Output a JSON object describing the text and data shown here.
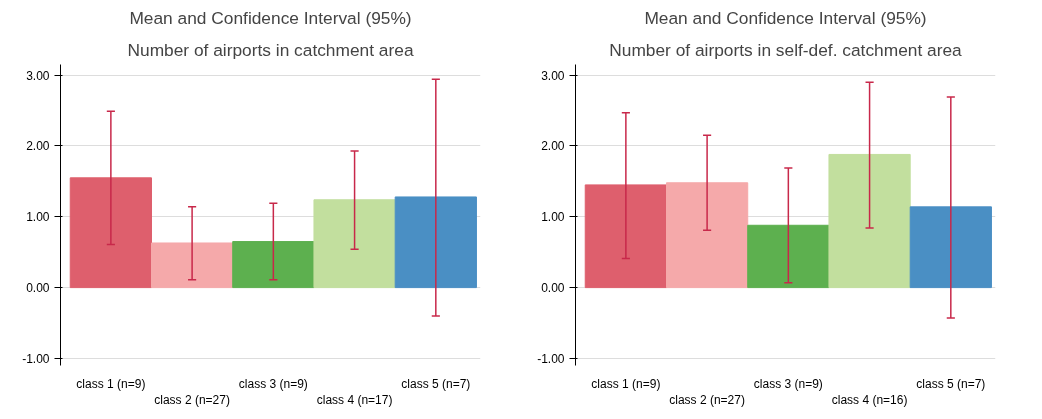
{
  "chart_data": [
    {
      "type": "bar",
      "title": "Mean and Confidence Interval (95%)",
      "subtitle": "Number of airports in catchment area",
      "categories": [
        "class 1 (n=9)",
        "class 2 (n=27)",
        "class 3 (n=9)",
        "class 4 (n=17)",
        "class 5 (n=7)"
      ],
      "values": [
        1.55,
        0.63,
        0.65,
        1.24,
        1.28
      ],
      "colors": [
        "#de5f6d",
        "#f5a9aa",
        "#5db04f",
        "#c2df9e",
        "#4a8fc4"
      ],
      "errors": [
        [
          0.61,
          2.49
        ],
        [
          0.11,
          1.14
        ],
        [
          0.11,
          1.19
        ],
        [
          0.54,
          1.93
        ],
        [
          -0.4,
          2.94
        ]
      ],
      "ylim": [
        -1.1,
        3.15
      ],
      "yticks": [
        {
          "value": -1,
          "label": "-1.00"
        },
        {
          "value": 0,
          "label": "0.00"
        },
        {
          "value": 1,
          "label": "1.00"
        },
        {
          "value": 2,
          "label": "2.00"
        },
        {
          "value": 3,
          "label": "3.00"
        }
      ],
      "grid": "y"
    },
    {
      "type": "bar",
      "title": "Mean and Confidence Interval (95%)",
      "subtitle": "Number of airports in self-def. catchment area",
      "categories": [
        "class 1 (n=9)",
        "class 2 (n=27)",
        "class 3 (n=9)",
        "class 4 (n=16)",
        "class 5 (n=7)"
      ],
      "values": [
        1.45,
        1.48,
        0.88,
        1.88,
        1.14
      ],
      "colors": [
        "#de5f6d",
        "#f5a9aa",
        "#5db04f",
        "#c2df9e",
        "#4a8fc4"
      ],
      "errors": [
        [
          0.41,
          2.47
        ],
        [
          0.81,
          2.15
        ],
        [
          0.07,
          1.69
        ],
        [
          0.84,
          2.9
        ],
        [
          -0.43,
          2.69
        ]
      ],
      "ylim": [
        -1.1,
        3.15
      ],
      "yticks": [
        {
          "value": -1,
          "label": "-1.00"
        },
        {
          "value": 0,
          "label": "0.00"
        },
        {
          "value": 1,
          "label": "1.00"
        },
        {
          "value": 2,
          "label": "2.00"
        },
        {
          "value": 3,
          "label": "3.00"
        }
      ],
      "grid": "y"
    }
  ]
}
